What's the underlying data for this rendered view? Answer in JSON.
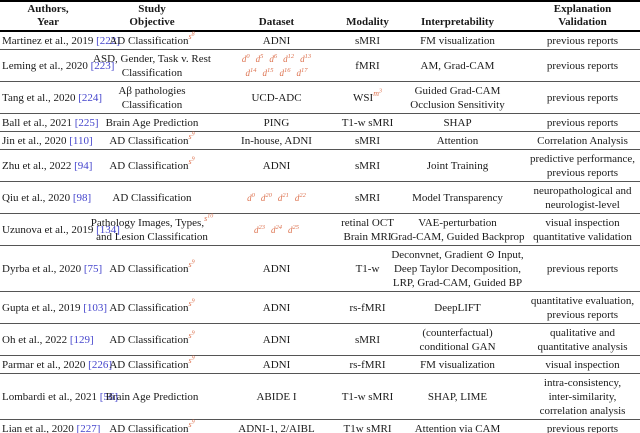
{
  "colors": {
    "citation": "#4444cc",
    "reference": "#dd7350",
    "text": "#1a1a1a",
    "rule": "#000000"
  },
  "table": {
    "columns": [
      "authors",
      "objective",
      "dataset",
      "modality",
      "interpretability",
      "validation"
    ],
    "headers": {
      "authors": [
        "Authors,",
        "Year"
      ],
      "objective": [
        "Study",
        "Objective"
      ],
      "dataset": [
        "Dataset"
      ],
      "modality": [
        "Modality"
      ],
      "interpretability": [
        "Interpretability"
      ],
      "validation": [
        "Explanation",
        "Validation"
      ]
    },
    "rows": [
      {
        "authors": [
          [
            "Martinez et al., 2019 ",
            {
              "s": "cite",
              "t": "[222]"
            }
          ]
        ],
        "objective": [
          [
            "AD Classification",
            {
              "s": "supref",
              "b": "s",
              "e": "8"
            }
          ]
        ],
        "dataset": [
          [
            "ADNI"
          ]
        ],
        "modality": [
          [
            "sMRI"
          ]
        ],
        "interpretability": [
          [
            "FM visualization"
          ]
        ],
        "validation": [
          [
            "previous reports"
          ]
        ]
      },
      {
        "authors": [
          [
            "Leming et al., 2020 ",
            {
              "s": "cite",
              "t": "[223]"
            }
          ]
        ],
        "objective": [
          [
            "ASD, Gender, Task v. Rest"
          ],
          [
            "Classification"
          ]
        ],
        "dataset": [
          [
            {
              "s": "dref",
              "b": "d",
              "e": "0"
            },
            {
              "s": "dref",
              "b": "d",
              "e": "5"
            },
            {
              "s": "dref",
              "b": "d",
              "e": "6"
            },
            {
              "s": "dref",
              "b": "d",
              "e": "12"
            },
            {
              "s": "dref",
              "b": "d",
              "e": "13"
            }
          ],
          [
            {
              "s": "dref",
              "b": "d",
              "e": "14"
            },
            {
              "s": "dref",
              "b": "d",
              "e": "15"
            },
            {
              "s": "dref",
              "b": "d",
              "e": "16"
            },
            {
              "s": "dref",
              "b": "d",
              "e": "17"
            }
          ]
        ],
        "modality": [
          [
            "fMRI"
          ]
        ],
        "interpretability": [
          [
            "AM, Grad-CAM"
          ]
        ],
        "validation": [
          [
            "previous reports"
          ]
        ]
      },
      {
        "authors": [
          [
            "Tang et al., 2020 ",
            {
              "s": "cite",
              "t": "[224]"
            }
          ]
        ],
        "objective": [
          [
            "Aβ pathologies"
          ],
          [
            "Classification"
          ]
        ],
        "dataset": [
          [
            "UCD-ADC"
          ]
        ],
        "modality": [
          [
            "WSI",
            {
              "s": "supref",
              "b": "m",
              "e": "3"
            }
          ]
        ],
        "interpretability": [
          [
            "Guided Grad-CAM"
          ],
          [
            "Occlusion Sensitivity"
          ]
        ],
        "validation": [
          [
            "previous reports"
          ]
        ]
      },
      {
        "authors": [
          [
            "Ball et al., 2021 ",
            {
              "s": "cite",
              "t": "[225]"
            }
          ]
        ],
        "objective": [
          [
            "Brain Age Prediction"
          ]
        ],
        "dataset": [
          [
            "PING"
          ]
        ],
        "modality": [
          [
            "T1-w sMRI"
          ]
        ],
        "interpretability": [
          [
            "SHAP"
          ]
        ],
        "validation": [
          [
            "previous reports"
          ]
        ]
      },
      {
        "authors": [
          [
            "Jin et al., 2020 ",
            {
              "s": "cite",
              "t": "[110]"
            }
          ]
        ],
        "objective": [
          [
            "AD Classification",
            {
              "s": "supref",
              "b": "s",
              "e": "9"
            }
          ]
        ],
        "dataset": [
          [
            "In-house, ADNI"
          ]
        ],
        "modality": [
          [
            "sMRI"
          ]
        ],
        "interpretability": [
          [
            "Attention"
          ]
        ],
        "validation": [
          [
            "Correlation Analysis"
          ]
        ]
      },
      {
        "authors": [
          [
            "Zhu et al., 2022 ",
            {
              "s": "cite",
              "t": "[94]"
            }
          ]
        ],
        "objective": [
          [
            "AD Classification",
            {
              "s": "supref",
              "b": "s",
              "e": "9"
            }
          ]
        ],
        "dataset": [
          [
            "ADNI"
          ]
        ],
        "modality": [
          [
            "sMRI"
          ]
        ],
        "interpretability": [
          [
            "Joint Training"
          ]
        ],
        "validation": [
          [
            "predictive performance,"
          ],
          [
            "previous reports"
          ]
        ]
      },
      {
        "authors": [
          [
            "Qiu et al., 2020 ",
            {
              "s": "cite",
              "t": "[98]"
            }
          ]
        ],
        "objective": [
          [
            "AD Classification"
          ]
        ],
        "dataset": [
          [
            {
              "s": "dref",
              "b": "d",
              "e": "0"
            },
            {
              "s": "dref",
              "b": "d",
              "e": "20"
            },
            {
              "s": "dref",
              "b": "d",
              "e": "21"
            },
            {
              "s": "dref",
              "b": "d",
              "e": "22"
            }
          ]
        ],
        "modality": [
          [
            "sMRI"
          ]
        ],
        "interpretability": [
          [
            "Model Transparency"
          ]
        ],
        "validation": [
          [
            "neuropathological and"
          ],
          [
            "neurologist-level"
          ]
        ]
      },
      {
        "authors": [
          [
            "Uzunova et al., 2019 ",
            {
              "s": "cite",
              "t": "[134]"
            }
          ]
        ],
        "objective": [
          [
            "Pathology Images, Types,",
            {
              "s": "supref",
              "b": "s",
              "e": "10"
            }
          ],
          [
            "and Lesion Classification"
          ]
        ],
        "dataset": [
          [
            {
              "s": "dref",
              "b": "d",
              "e": "23"
            },
            {
              "s": "dref",
              "b": "d",
              "e": "24"
            },
            {
              "s": "dref",
              "b": "d",
              "e": "25"
            }
          ]
        ],
        "modality": [
          [
            "retinal OCT"
          ],
          [
            "Brain MRI"
          ]
        ],
        "interpretability": [
          [
            "VAE-perturbation"
          ],
          [
            "Grad-CAM, Guided Backprop"
          ]
        ],
        "validation": [
          [
            "visual inspection"
          ],
          [
            "quantitative validation"
          ]
        ]
      },
      {
        "authors": [
          [
            "Dyrba et al., 2020 ",
            {
              "s": "cite",
              "t": "[75]"
            }
          ]
        ],
        "objective": [
          [
            "AD Classification",
            {
              "s": "supref",
              "b": "s",
              "e": "9"
            }
          ]
        ],
        "dataset": [
          [
            "ADNI"
          ]
        ],
        "modality": [
          [
            "T1-w"
          ]
        ],
        "interpretability": [
          [
            "Deconvnet, Gradient ⊙ Input,"
          ],
          [
            "Deep Taylor Decomposition,"
          ],
          [
            "LRP, Grad-CAM, Guided BP"
          ]
        ],
        "validation": [
          [
            "previous reports"
          ]
        ]
      },
      {
        "authors": [
          [
            "Gupta et al., 2019 ",
            {
              "s": "cite",
              "t": "[103]"
            }
          ]
        ],
        "objective": [
          [
            "AD Classification",
            {
              "s": "supref",
              "b": "s",
              "e": "9"
            }
          ]
        ],
        "dataset": [
          [
            "ADNI"
          ]
        ],
        "modality": [
          [
            "rs-fMRI"
          ]
        ],
        "interpretability": [
          [
            "DeepLIFT"
          ]
        ],
        "validation": [
          [
            "quantitative evaluation,"
          ],
          [
            "previous reports"
          ]
        ]
      },
      {
        "authors": [
          [
            "Oh et al., 2022 ",
            {
              "s": "cite",
              "t": "[129]"
            }
          ]
        ],
        "objective": [
          [
            "AD Classification",
            {
              "s": "supref",
              "b": "s",
              "e": "9"
            }
          ]
        ],
        "dataset": [
          [
            "ADNI"
          ]
        ],
        "modality": [
          [
            "sMRI"
          ]
        ],
        "interpretability": [
          [
            "(counterfactual)"
          ],
          [
            "conditional GAN"
          ]
        ],
        "validation": [
          [
            "qualitative and"
          ],
          [
            "quantitative analysis"
          ]
        ]
      },
      {
        "authors": [
          [
            "Parmar et al., 2020 ",
            {
              "s": "cite",
              "t": "[226]"
            }
          ]
        ],
        "objective": [
          [
            "AD Classification",
            {
              "s": "supref",
              "b": "s",
              "e": "9"
            }
          ]
        ],
        "dataset": [
          [
            "ADNI"
          ]
        ],
        "modality": [
          [
            "rs-fMRI"
          ]
        ],
        "interpretability": [
          [
            "FM visualization"
          ]
        ],
        "validation": [
          [
            "visual inspection"
          ]
        ]
      },
      {
        "authors": [
          [
            "Lombardi et al., 2021 ",
            {
              "s": "cite",
              "t": "[56]"
            }
          ]
        ],
        "objective": [
          [
            "Brain Age Prediction"
          ]
        ],
        "dataset": [
          [
            "ABIDE I"
          ]
        ],
        "modality": [
          [
            "T1-w sMRI"
          ]
        ],
        "interpretability": [
          [
            "SHAP, LIME"
          ]
        ],
        "validation": [
          [
            "intra-consistency,"
          ],
          [
            "inter-similarity,"
          ],
          [
            "correlation analysis"
          ]
        ]
      },
      {
        "authors": [
          [
            "Lian et al., 2020 ",
            {
              "s": "cite",
              "t": "[227]"
            }
          ]
        ],
        "objective": [
          [
            "AD Classification",
            {
              "s": "supref",
              "b": "s",
              "e": "9"
            }
          ]
        ],
        "dataset": [
          [
            "ADNI-1, 2/AIBL"
          ]
        ],
        "modality": [
          [
            "T1w sMRI"
          ]
        ],
        "interpretability": [
          [
            "Attention via CAM"
          ]
        ],
        "validation": [
          [
            "previous reports"
          ]
        ]
      }
    ]
  }
}
